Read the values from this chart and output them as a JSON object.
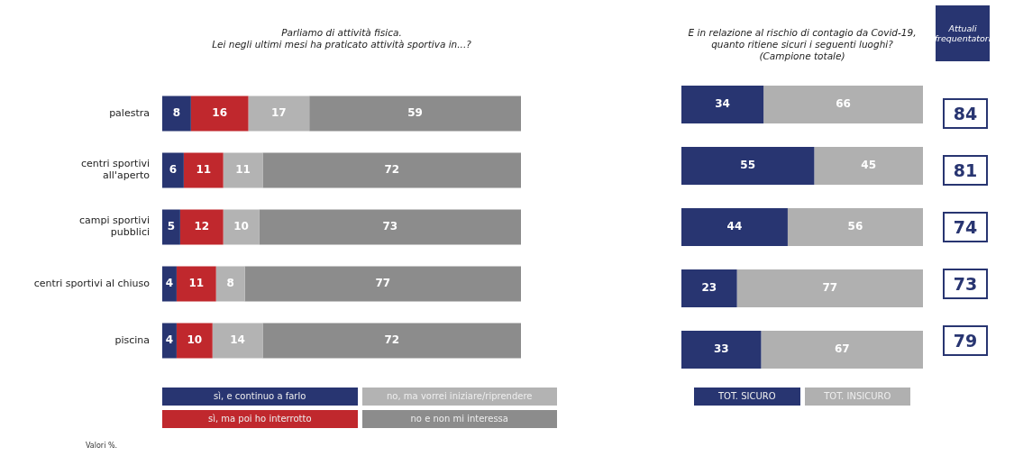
{
  "chart_data": [
    {
      "type": "bar",
      "orientation": "horizontal",
      "stacked": true,
      "title": "Parliamo di attività fisica.\nLei negli ultimi mesi ha praticato attività sportiva in...?",
      "categories": [
        "palestra",
        "centri sportivi\nall'aperto",
        "campi sportivi\npubblici",
        "centri sportivi al chiuso",
        "piscina"
      ],
      "series": [
        {
          "name": "sì, e continuo a farlo",
          "color": "#283571",
          "values": [
            8,
            6,
            5,
            4,
            4
          ]
        },
        {
          "name": "sì, ma poi ho interrotto",
          "color": "#c0282d",
          "values": [
            16,
            11,
            12,
            11,
            10
          ]
        },
        {
          "name": "no, ma vorrei iniziare/riprendere",
          "color": "#b3b3b3",
          "values": [
            17,
            11,
            10,
            8,
            14
          ]
        },
        {
          "name": "no e non mi interessa",
          "color": "#8c8c8c",
          "values": [
            59,
            72,
            73,
            77,
            72
          ]
        }
      ],
      "xlim": [
        0,
        100
      ],
      "tick_labels": "y",
      "data_labels": true,
      "legend": "bottom",
      "annotations": [
        "Valori %."
      ]
    },
    {
      "type": "bar",
      "orientation": "horizontal",
      "stacked": true,
      "title": "E in relazione al rischio di contagio da Covid-19,\nquanto ritiene sicuri i seguenti luoghi?\n(Campione totale)",
      "categories": [
        null,
        null,
        null,
        null,
        null
      ],
      "series": [
        {
          "name": "TOT. SICURO",
          "color": "#283571",
          "values": [
            34,
            55,
            44,
            23,
            33
          ]
        },
        {
          "name": "TOT. INSICURO",
          "color": "#b0b0b0",
          "values": [
            66,
            45,
            56,
            77,
            67
          ]
        }
      ],
      "xlim": [
        0,
        100
      ],
      "tick_labels": false,
      "data_labels": true,
      "legend": "bottom"
    },
    {
      "type": "other",
      "title": "Attuali frequentatori",
      "values": [
        84,
        81,
        74,
        73,
        79
      ],
      "color": "#283571",
      "data_labels": true
    }
  ]
}
